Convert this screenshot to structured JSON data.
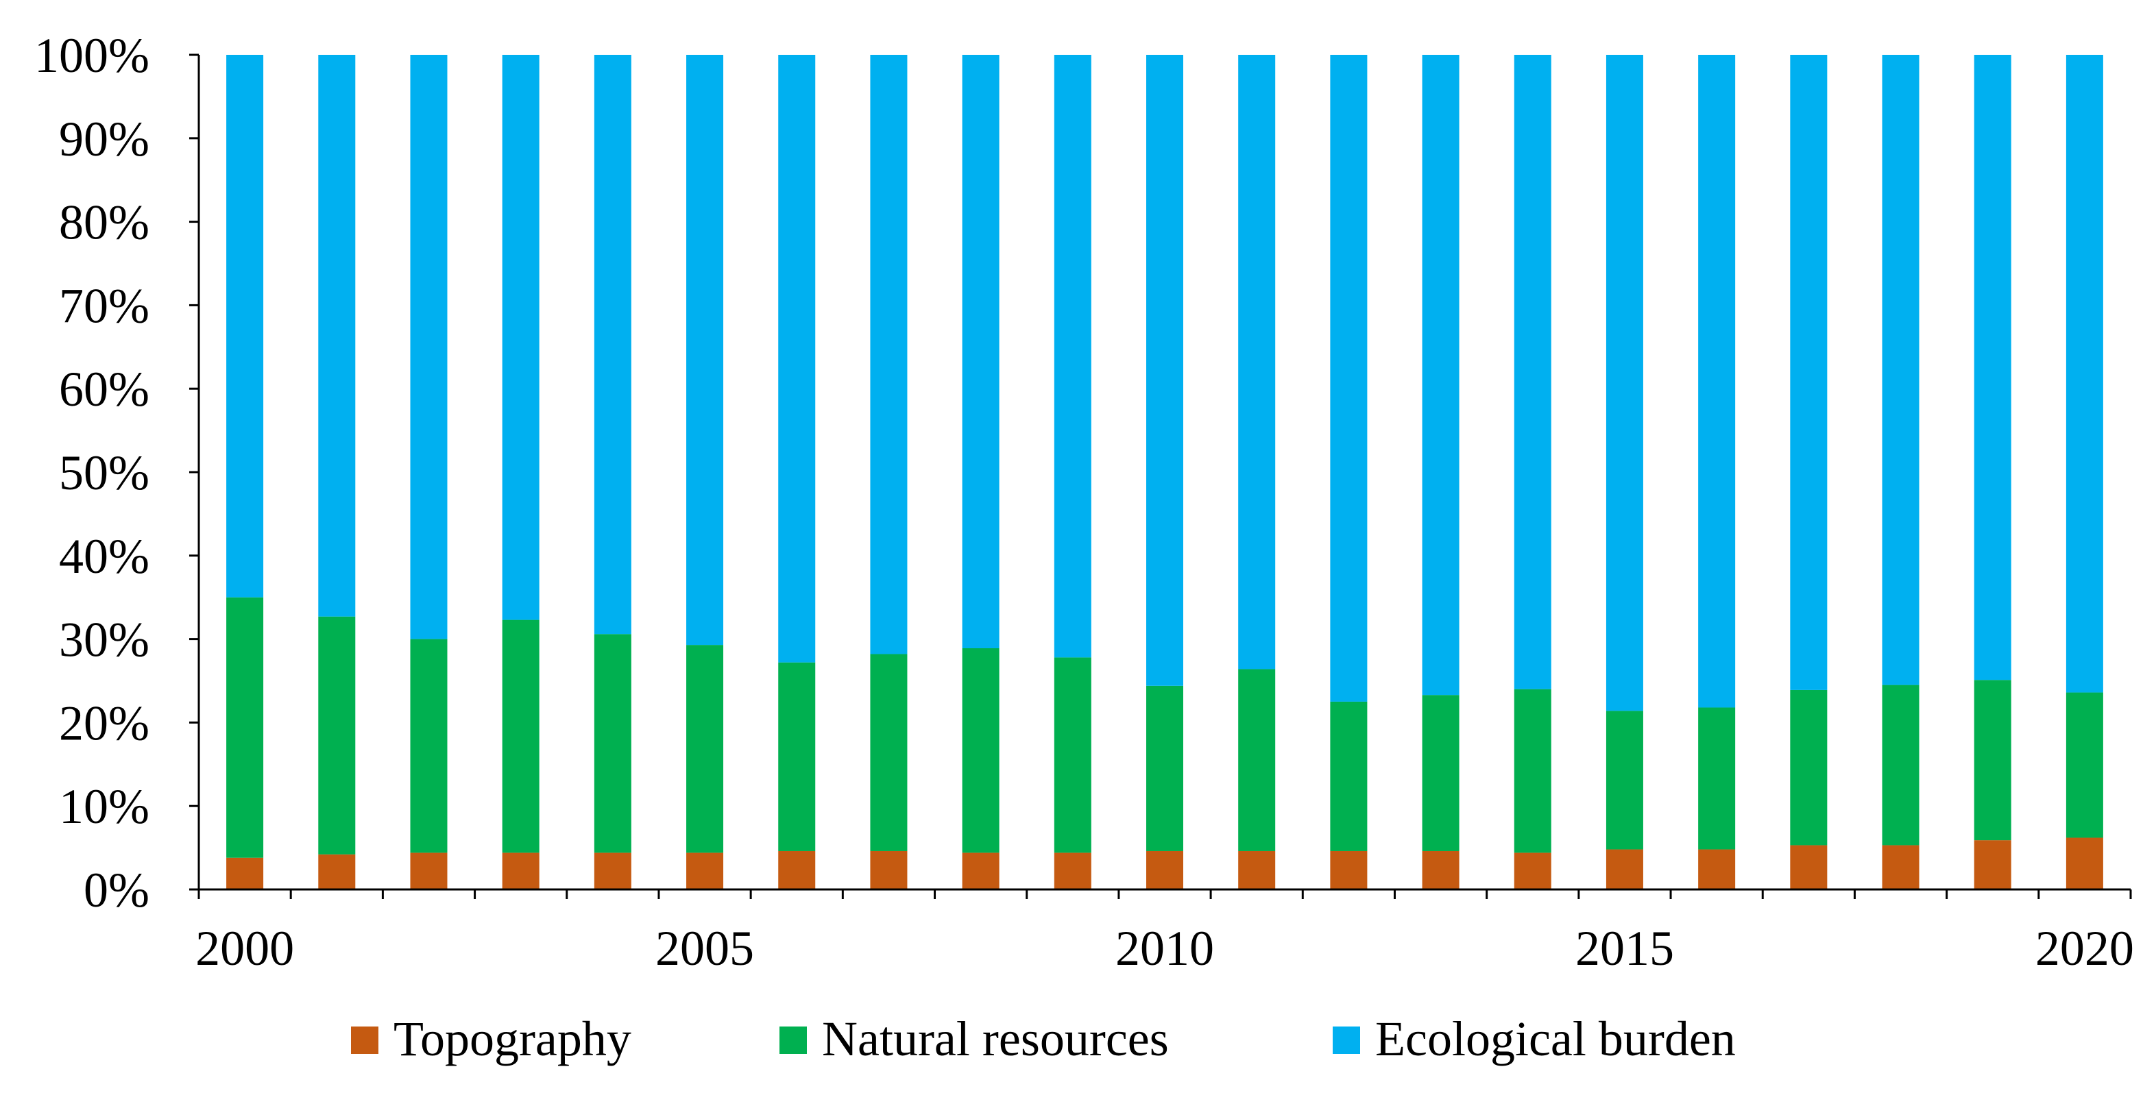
{
  "chart_data": {
    "type": "bar",
    "stacked": true,
    "normalized": true,
    "title": "",
    "xlabel": "",
    "ylabel": "",
    "ylim": [
      0,
      100
    ],
    "y_ticks": [
      "0%",
      "10%",
      "20%",
      "30%",
      "40%",
      "50%",
      "60%",
      "70%",
      "80%",
      "90%",
      "100%"
    ],
    "x_tick_labels": [
      "2000",
      "2005",
      "2010",
      "2015",
      "2020"
    ],
    "categories": [
      "2000",
      "2001",
      "2002",
      "2003",
      "2004",
      "2005",
      "2006",
      "2007",
      "2008",
      "2009",
      "2010",
      "2011",
      "2012",
      "2013",
      "2014",
      "2015",
      "2016",
      "2017",
      "2018",
      "2019",
      "2020"
    ],
    "series": [
      {
        "name": "Topography",
        "color": "#c55a11",
        "values": [
          3.8,
          4.2,
          4.4,
          4.4,
          4.4,
          4.4,
          4.6,
          4.6,
          4.4,
          4.4,
          4.6,
          4.6,
          4.6,
          4.6,
          4.4,
          4.8,
          4.8,
          5.3,
          5.3,
          5.9,
          6.2
        ]
      },
      {
        "name": "Natural resources",
        "color": "#00b050",
        "values": [
          31.2,
          28.5,
          25.6,
          27.9,
          26.2,
          24.9,
          22.6,
          23.6,
          24.5,
          23.4,
          19.8,
          21.8,
          17.9,
          18.7,
          19.6,
          16.6,
          17.0,
          18.6,
          19.2,
          19.2,
          17.4
        ]
      },
      {
        "name": "Ecological burden",
        "color": "#00b0f0",
        "values": [
          65.0,
          67.3,
          70.0,
          67.7,
          69.4,
          70.7,
          72.8,
          71.8,
          71.1,
          72.2,
          75.6,
          73.6,
          77.5,
          76.7,
          76.0,
          78.6,
          78.2,
          76.1,
          75.5,
          74.9,
          76.4
        ]
      }
    ],
    "legend_position": "bottom"
  }
}
